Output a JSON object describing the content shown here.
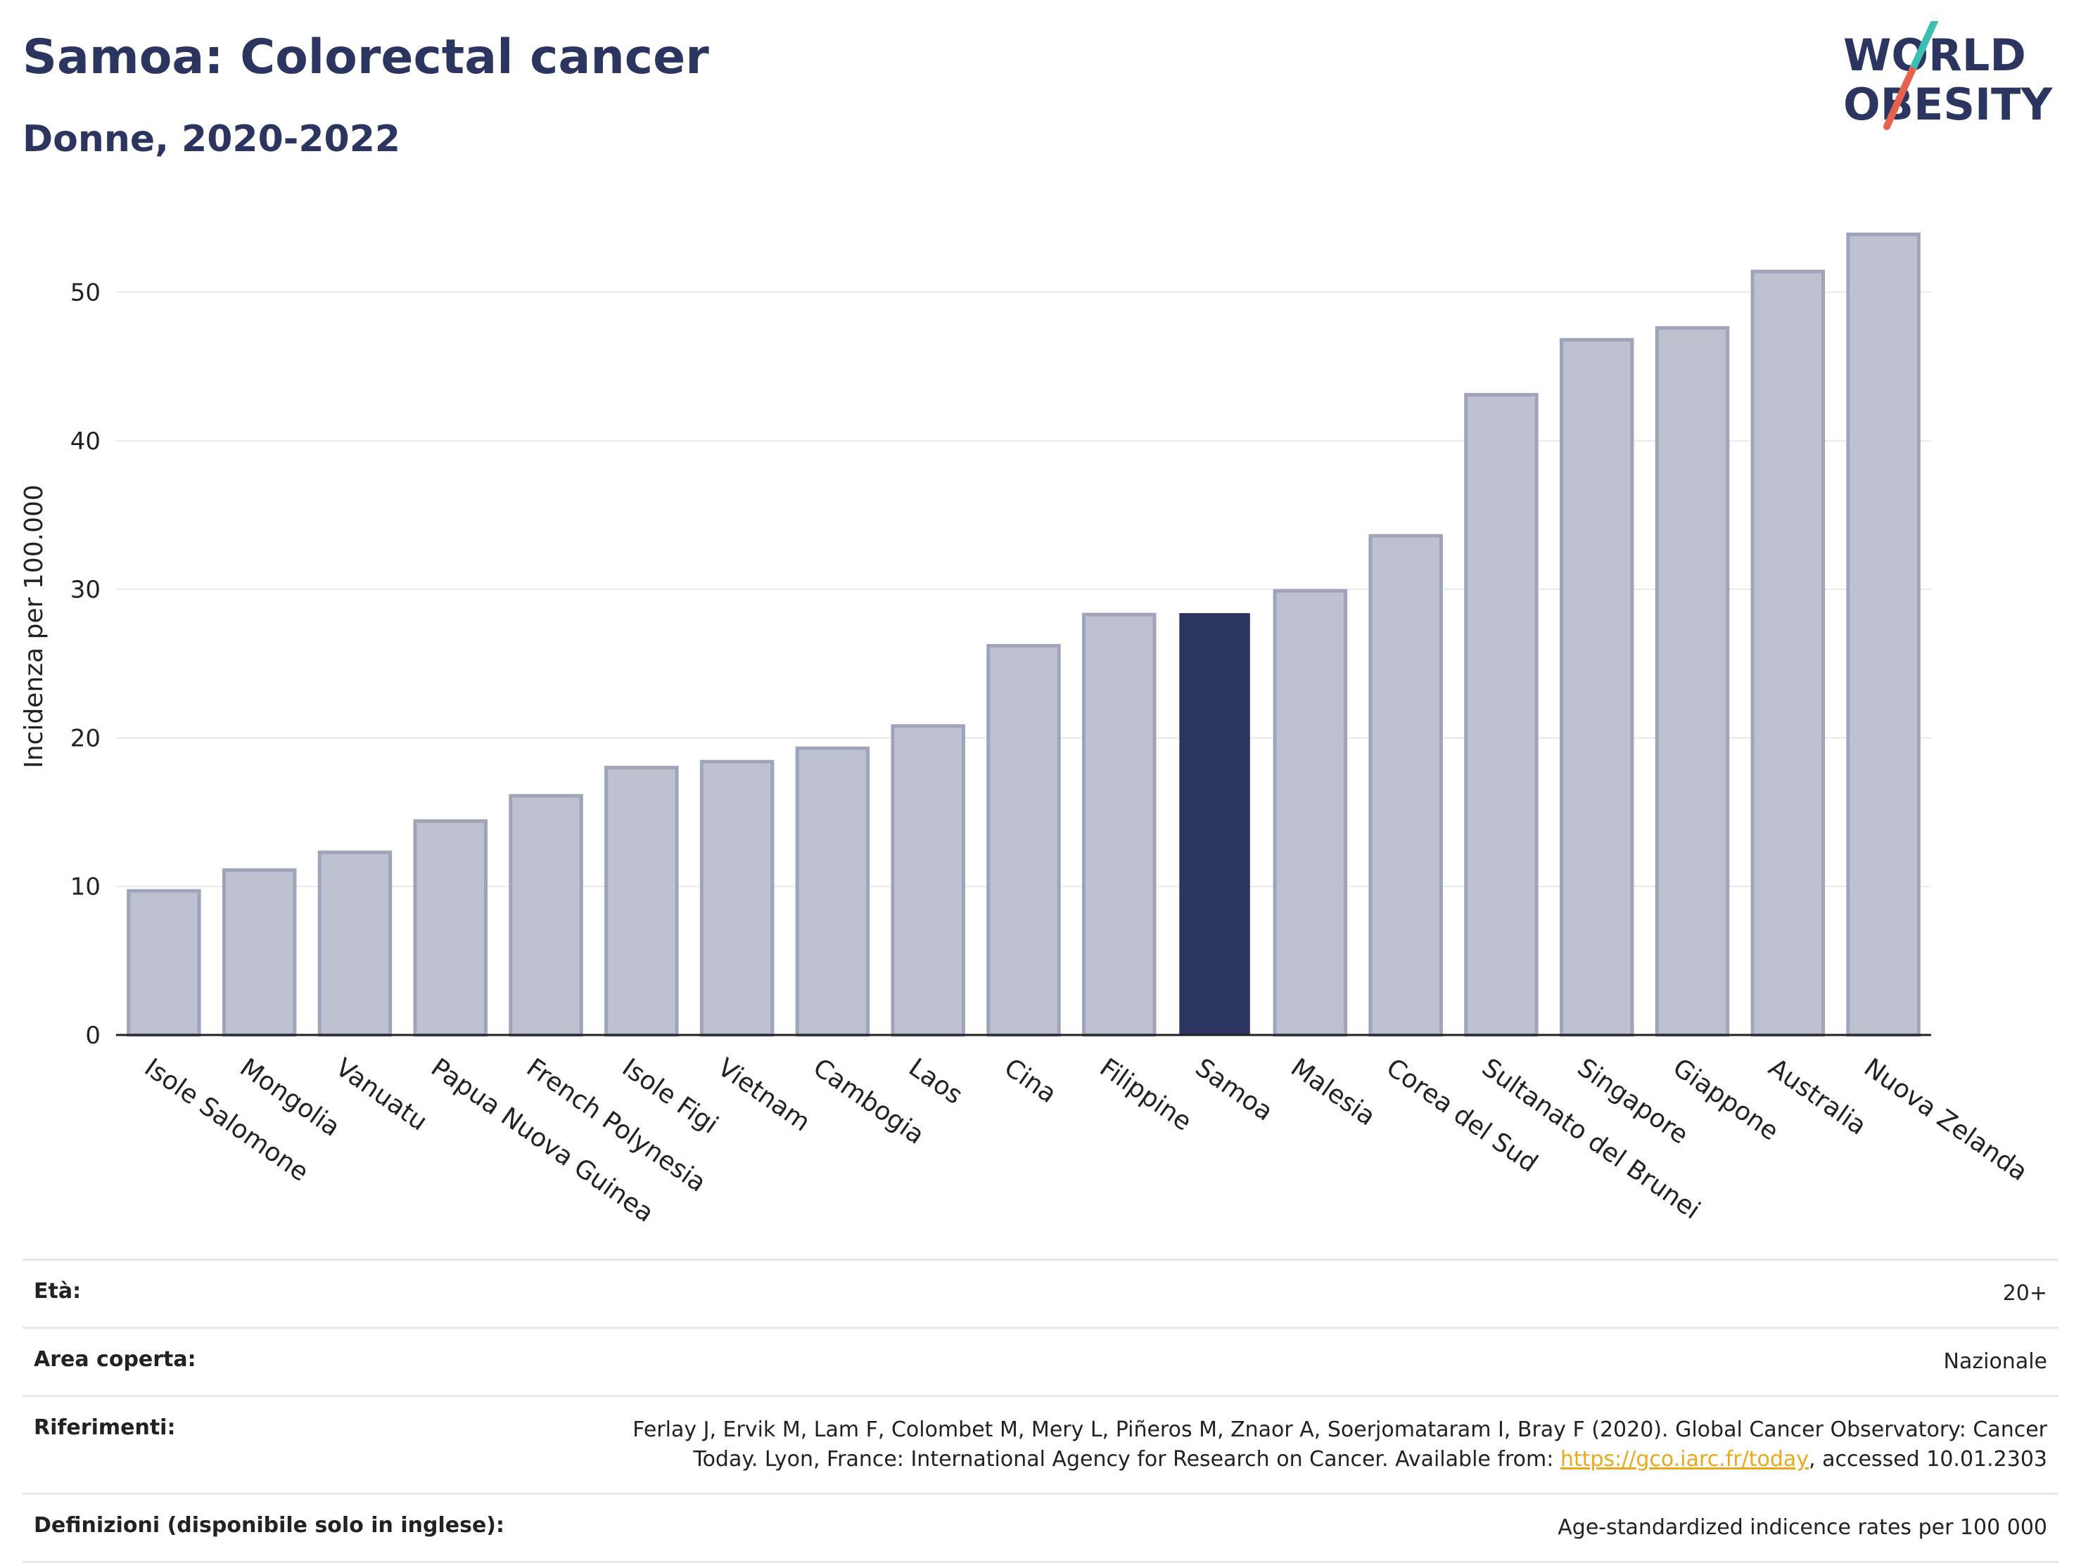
{
  "header": {
    "title": "Samoa: Colorectal cancer",
    "subtitle": "Donne, 2020-2022"
  },
  "logo": {
    "line1": "WORLD",
    "line2": "OBESITY",
    "colors": {
      "text": "#2c355f",
      "slash_teal": "#3bbfb0",
      "slash_red": "#e8614d"
    }
  },
  "chart_data": {
    "type": "bar",
    "ylabel": "Incidenza per 100.000",
    "ylim": [
      0,
      55
    ],
    "yticks": [
      0,
      10,
      20,
      30,
      40,
      50
    ],
    "grid": true,
    "categories": [
      "Isole Salomone",
      "Mongolia",
      "Vanuatu",
      "Papua Nuova Guinea",
      "French Polynesia",
      "Isole Figi",
      "Vietnam",
      "Cambogia",
      "Laos",
      "Cina",
      "Filippine",
      "Samoa",
      "Malesia",
      "Corea del Sud",
      "Sultanato del Brunei",
      "Singapore",
      "Giappone",
      "Australia",
      "Nuova Zelanda"
    ],
    "values": [
      9.7,
      11.1,
      12.3,
      14.4,
      16.1,
      18.0,
      18.4,
      19.3,
      20.8,
      26.2,
      28.3,
      28.4,
      29.9,
      33.6,
      43.1,
      46.8,
      47.6,
      51.4,
      53.9
    ],
    "highlight": "Samoa",
    "colors": {
      "bar": "#bec1cf",
      "bar_edge": "#9fa4bb",
      "highlight": "#2c355f",
      "grid": "#e8e9ee",
      "axis": "#222222"
    }
  },
  "info": {
    "age": {
      "label": "Età:",
      "value": "20+"
    },
    "area": {
      "label": "Area coperta:",
      "value": "Nazionale"
    },
    "references": {
      "label": "Riferimenti:",
      "text_line1": "Ferlay J, Ervik M, Lam F, Colombet M, Mery L, Piñeros M, Znaor A, Soerjomataram I, Bray F (2020). Global Cancer Observatory: Cancer",
      "text_line2_pre": "Today. Lyon, France: International Agency for Research on Cancer. Available from: ",
      "link": "https://gco.iarc.fr/today",
      "text_line2_post": ", accessed 10.01.2303"
    },
    "definitions": {
      "label": "Definizioni (disponibile solo in inglese):",
      "value": "Age-standardized indicence rates per 100 000"
    }
  }
}
